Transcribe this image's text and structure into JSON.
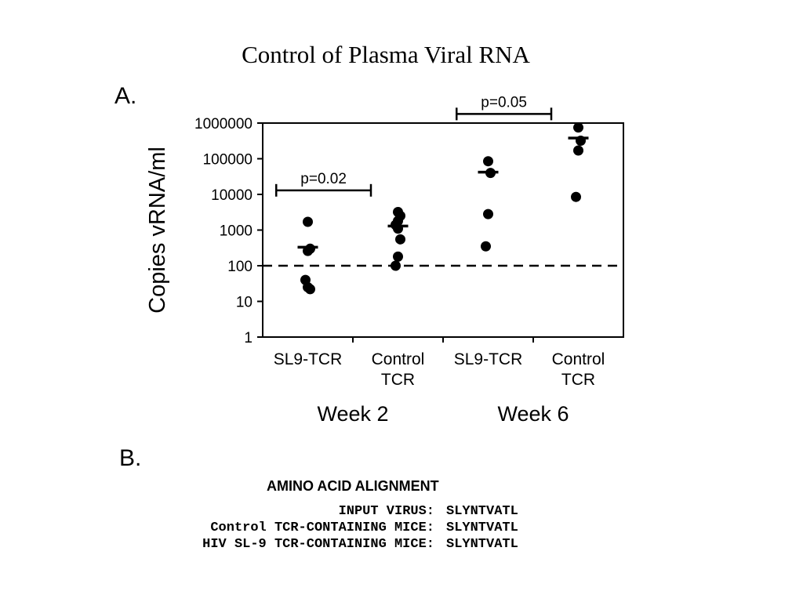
{
  "slide_title": "Control of Plasma Viral RNA",
  "panel_a_label": "A.",
  "panel_b_label": "B.",
  "chart_data": {
    "type": "scatter",
    "ylabel": "Copies vRNA/ml",
    "yscale": "log",
    "ylim": [
      1,
      1000000
    ],
    "yticks": [
      "1",
      "10",
      "100",
      "1000",
      "10000",
      "100000",
      "1000000"
    ],
    "threshold_line": 100,
    "categories": [
      {
        "label": [
          "SL9-TCR"
        ],
        "week": "Week 2",
        "mean": 330,
        "points": [
          1700,
          300,
          260,
          40,
          25,
          22
        ]
      },
      {
        "label": [
          "Control",
          "TCR"
        ],
        "week": "Week 2",
        "mean": 1300,
        "points": [
          3200,
          2500,
          1800,
          1400,
          1100,
          550,
          180,
          100
        ]
      },
      {
        "label": [
          "SL9-TCR"
        ],
        "week": "Week 6",
        "mean": 42000,
        "points": [
          85000,
          40000,
          2800,
          350
        ]
      },
      {
        "label": [
          "Control",
          "TCR"
        ],
        "week": "Week 6",
        "mean": 380000,
        "points": [
          750000,
          320000,
          170000,
          8500
        ]
      }
    ],
    "group_labels": [
      "Week 2",
      "Week 6"
    ],
    "comparisons": [
      {
        "from": 0,
        "to": 1,
        "text": "p=0.02",
        "y": 13000
      },
      {
        "from": 2,
        "to": 3,
        "text": "p=0.05",
        "y": 1800000
      }
    ]
  },
  "alignment": {
    "title": "AMINO ACID ALIGNMENT",
    "rows": [
      {
        "label": "INPUT VIRUS:",
        "sequence": "SLYNTVATL"
      },
      {
        "label": "Control TCR-CONTAINING MICE:",
        "sequence": "SLYNTVATL"
      },
      {
        "label": "HIV SL-9 TCR-CONTAINING MICE:",
        "sequence": "SLYNTVATL"
      }
    ]
  }
}
